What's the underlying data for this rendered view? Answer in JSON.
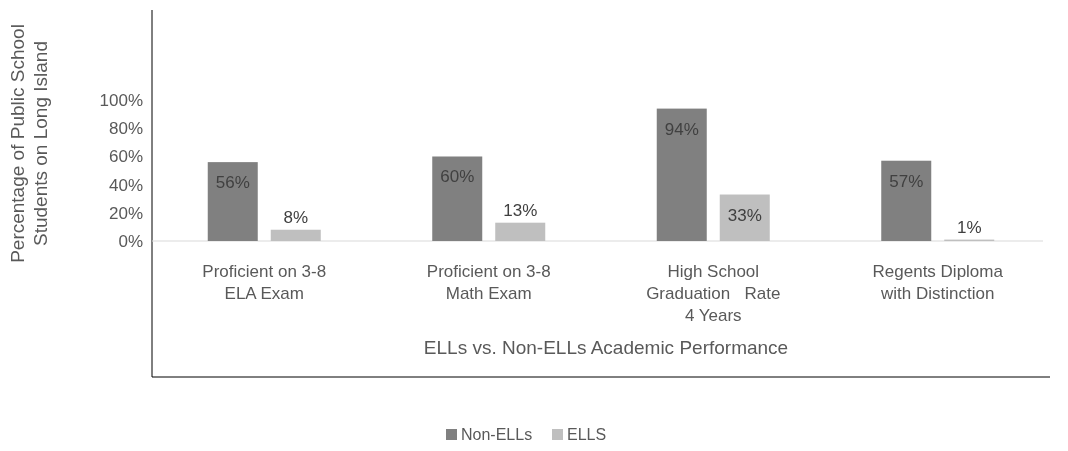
{
  "chart_data": {
    "type": "bar",
    "xlabel": "ELLs vs. Non-ELLs Academic Performance",
    "ylabel": "Percentage of Public School Students on Long Island",
    "categories": [
      "Proficient on 3-8 ELA Exam",
      "Proficient on 3-8 Math Exam",
      "High School Graduation   Rate 4 Years",
      "Regents Diploma with Distinction"
    ],
    "series": [
      {
        "name": "Non-ELLs",
        "color": "#808080",
        "values": [
          56,
          60,
          94,
          57
        ],
        "value_labels": [
          "56%",
          "60%",
          "94%",
          "57%"
        ]
      },
      {
        "name": "ELLS",
        "color": "#bfbfbf",
        "values": [
          8,
          13,
          33,
          1
        ],
        "value_labels": [
          "8%",
          "13%",
          "33%",
          "1%"
        ]
      }
    ],
    "ylim": [
      0,
      164
    ],
    "yticks": [
      {
        "value": 0,
        "label": "0%"
      },
      {
        "value": 20,
        "label": "20%"
      },
      {
        "value": 40,
        "label": "40%"
      },
      {
        "value": 60,
        "label": "60%"
      },
      {
        "value": 80,
        "label": "80%"
      },
      {
        "value": 100,
        "label": "100%"
      }
    ],
    "legend": "bottom",
    "grid": false
  }
}
